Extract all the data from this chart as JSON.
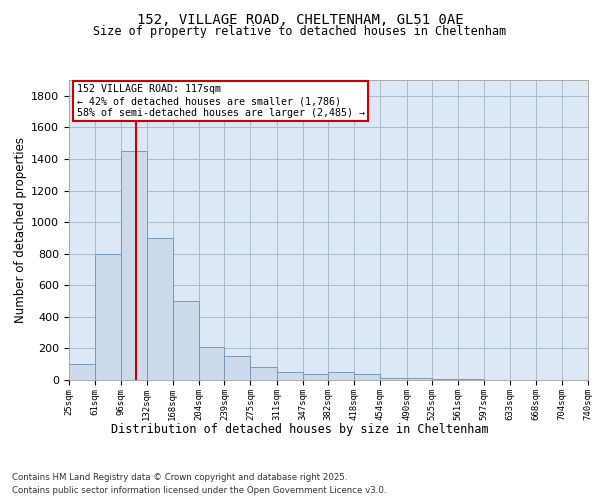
{
  "title_line1": "152, VILLAGE ROAD, CHELTENHAM, GL51 0AE",
  "title_line2": "Size of property relative to detached houses in Cheltenham",
  "xlabel": "Distribution of detached houses by size in Cheltenham",
  "ylabel": "Number of detached properties",
  "annotation_title": "152 VILLAGE ROAD: 117sqm",
  "annotation_line2": "← 42% of detached houses are smaller (1,786)",
  "annotation_line3": "58% of semi-detached houses are larger (2,485) →",
  "bar_edges": [
    25,
    61,
    96,
    132,
    168,
    204,
    239,
    275,
    311,
    347,
    382,
    418,
    454,
    490,
    525,
    561,
    597,
    633,
    668,
    704,
    740
  ],
  "bar_values": [
    100,
    800,
    1450,
    900,
    500,
    210,
    150,
    80,
    50,
    40,
    50,
    40,
    15,
    10,
    8,
    5,
    3,
    2,
    1,
    1,
    0
  ],
  "bar_color": "#ccdaeb",
  "bar_edge_color": "#7799bb",
  "vline_color": "#cc0000",
  "vline_x": 117,
  "annotation_box_color": "#cc0000",
  "annotation_bg_color": "#ffffff",
  "grid_color": "#aabbcc",
  "background_color": "#dce8f5",
  "ylim": [
    0,
    1900
  ],
  "yticks": [
    0,
    200,
    400,
    600,
    800,
    1000,
    1200,
    1400,
    1600,
    1800
  ],
  "footnote_line1": "Contains HM Land Registry data © Crown copyright and database right 2025.",
  "footnote_line2": "Contains public sector information licensed under the Open Government Licence v3.0."
}
